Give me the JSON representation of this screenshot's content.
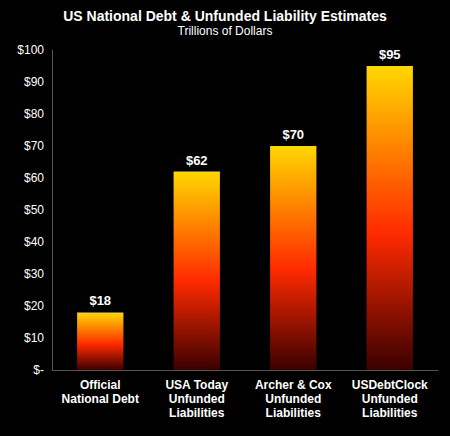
{
  "chart_data": {
    "type": "bar",
    "title": "US National Debt & Unfunded Liability Estimates",
    "subtitle": "Trillions of Dollars",
    "categories": [
      "Official\nNational Debt",
      "USA Today\nUnfunded\nLiabilities",
      "Archer & Cox\nUnfunded\nLiabilities",
      "USDebtClock\nUnfunded\nLiabilities"
    ],
    "values": [
      18,
      62,
      70,
      95
    ],
    "value_labels": [
      "$18",
      "$62",
      "$70",
      "$95"
    ],
    "data_labels": true,
    "color": "#ffd700",
    "ylim": [
      0,
      100
    ],
    "yticks": [
      {
        "value": 0,
        "label": "$-"
      },
      {
        "value": 10,
        "label": "$10"
      },
      {
        "value": 20,
        "label": "$20"
      },
      {
        "value": 30,
        "label": "$30"
      },
      {
        "value": 40,
        "label": "$40"
      },
      {
        "value": 50,
        "label": "$50"
      },
      {
        "value": 60,
        "label": "$60"
      },
      {
        "value": 70,
        "label": "$70"
      },
      {
        "value": 80,
        "label": "$80"
      },
      {
        "value": 90,
        "label": "$90"
      },
      {
        "value": 100,
        "label": "$100"
      }
    ],
    "grid": false
  }
}
